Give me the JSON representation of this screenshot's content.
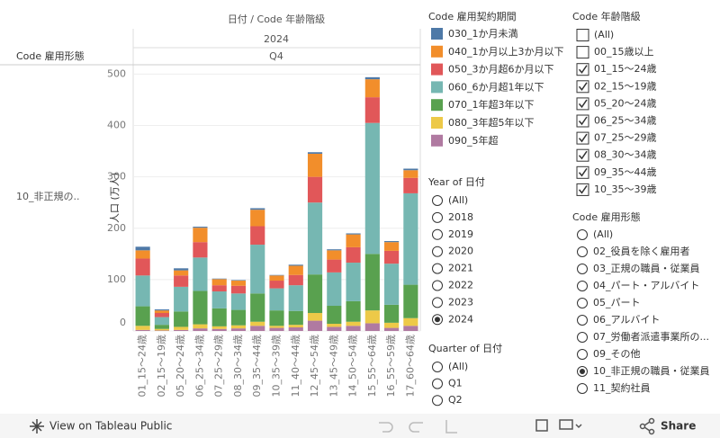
{
  "chart_data": {
    "type": "stacked_bar",
    "column_header": "日付 / Code 年齢階級",
    "year_header": "2024",
    "quarter_header": "Q4",
    "row_header": "Code 雇用形態",
    "row_label": "10_非正規の..",
    "y_label": "人口 (万人)",
    "categories": [
      "01_15～24歳",
      "02_15～19歳",
      "05_20～24歳",
      "06_25～34歳",
      "07_25～29歳",
      "08_30～34歳",
      "09_35～44歳",
      "10_35～39歳",
      "11_40～44歳",
      "12_45～54歳",
      "13_45～49歳",
      "14_50～54歳",
      "15_55～64歳",
      "16_55～59歳",
      "17_60～64歳"
    ],
    "series": [
      {
        "name": "090_5年超",
        "color": "#b07aa1",
        "values": [
          2,
          1,
          2,
          5,
          4,
          5,
          10,
          6,
          7,
          20,
          8,
          10,
          15,
          6,
          10
        ]
      },
      {
        "name": "080_3年超5年以下",
        "color": "#edc948",
        "values": [
          8,
          3,
          6,
          8,
          5,
          6,
          8,
          4,
          5,
          15,
          6,
          8,
          25,
          10,
          15
        ]
      },
      {
        "name": "070_1年超3年以下",
        "color": "#59a14f",
        "values": [
          38,
          8,
          30,
          65,
          35,
          30,
          55,
          30,
          27,
          75,
          35,
          40,
          110,
          35,
          65
        ]
      },
      {
        "name": "060_6か月超1年以下",
        "color": "#76b7b2",
        "values": [
          60,
          15,
          48,
          65,
          33,
          32,
          95,
          43,
          50,
          140,
          65,
          75,
          255,
          80,
          178
        ]
      },
      {
        "name": "050_3か月超6か月以下",
        "color": "#e15759",
        "values": [
          33,
          8,
          22,
          30,
          12,
          15,
          36,
          15,
          20,
          50,
          25,
          30,
          50,
          25,
          30
        ]
      },
      {
        "name": "040_1か月以上3か月以下",
        "color": "#f28e2b",
        "values": [
          16,
          5,
          10,
          28,
          12,
          10,
          32,
          10,
          18,
          45,
          18,
          25,
          35,
          17,
          15
        ]
      },
      {
        "name": "030_1か月未満",
        "color": "#4e79a7",
        "values": [
          7,
          2,
          4,
          2,
          1,
          1,
          3,
          1,
          2,
          3,
          2,
          2,
          4,
          2,
          3
        ]
      }
    ],
    "ylim": [
      0,
      520
    ],
    "yticks": [
      0,
      100,
      200,
      300,
      400,
      500
    ],
    "grid": true
  },
  "legend_panel": {
    "title": "Code 雇用契約期間"
  },
  "year_filter": {
    "title": "Year of 日付",
    "options": [
      "(All)",
      "2018",
      "2019",
      "2020",
      "2021",
      "2022",
      "2023",
      "2024"
    ],
    "selected": 7
  },
  "quarter_filter": {
    "title": "Quarter of 日付",
    "options": [
      "(All)",
      "Q1",
      "Q2"
    ]
  },
  "age_filter": {
    "title": "Code 年齢階級",
    "options": [
      "(All)",
      "00_15歳以上",
      "01_15～24歳",
      "02_15～19歳",
      "05_20～24歳",
      "06_25～34歳",
      "07_25～29歳",
      "08_30～34歳",
      "09_35～44歳",
      "10_35～39歳"
    ],
    "checked": [
      false,
      false,
      true,
      true,
      true,
      true,
      true,
      true,
      true,
      true
    ]
  },
  "employment_filter": {
    "title": "Code 雇用形態",
    "options": [
      "(All)",
      "02_役員を除く雇用者",
      "03_正規の職員・従業員",
      "04_パート・アルバイト",
      "05_パート",
      "06_アルバイト",
      "07_労働者派遣事業所の...",
      "09_その他",
      "10_非正規の職員・従業員",
      "11_契約社員"
    ],
    "selected": 8
  },
  "toolbar": {
    "view_link": "View on Tableau Public",
    "share": "Share"
  }
}
